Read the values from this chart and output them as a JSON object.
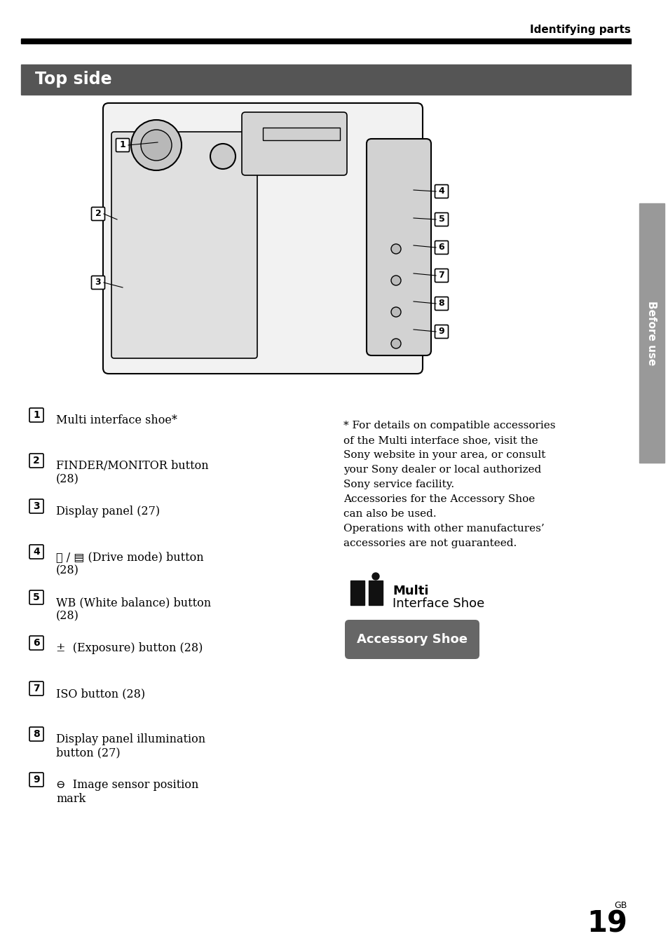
{
  "page_bg": "#ffffff",
  "header_text": "Identifying parts",
  "section_bg": "#555555",
  "section_text": "Top side",
  "section_text_color": "#ffffff",
  "sidebar_bg": "#999999",
  "sidebar_text": "Before use",
  "sidebar_text_color": "#ffffff",
  "page_number": "19",
  "page_number_label": "GB",
  "left_items": [
    {
      "num": "1",
      "text": "Multi interface shoe*"
    },
    {
      "num": "2",
      "text": "FINDER/MONITOR button\n(28)"
    },
    {
      "num": "3",
      "text": "Display panel (27)"
    },
    {
      "num": "4",
      "text": "♈ / ▤ (Drive mode) button\n(28)"
    },
    {
      "num": "5",
      "text": "WB (White balance) button\n(28)"
    },
    {
      "num": "6",
      "text": "±  (Exposure) button (28)"
    },
    {
      "num": "7",
      "text": "ISO button (28)"
    },
    {
      "num": "8",
      "text": "Display panel illumination\nbutton (27)"
    },
    {
      "num": "9",
      "text": "⊖  Image sensor position\nmark"
    }
  ],
  "right_note_lines": [
    "* For details on compatible accessories",
    "of the Multi interface shoe, visit the",
    "Sony website in your area, or consult",
    "your Sony dealer or local authorized",
    "Sony service facility.",
    "Accessories for the Accessory Shoe",
    "can also be used.",
    "Operations with other manufactures’",
    "accessories are not guaranteed."
  ],
  "accessory_shoe_btn_bg": "#666666",
  "accessory_shoe_btn_text": "Accessory Shoe",
  "accessory_shoe_btn_text_color": "#ffffff"
}
